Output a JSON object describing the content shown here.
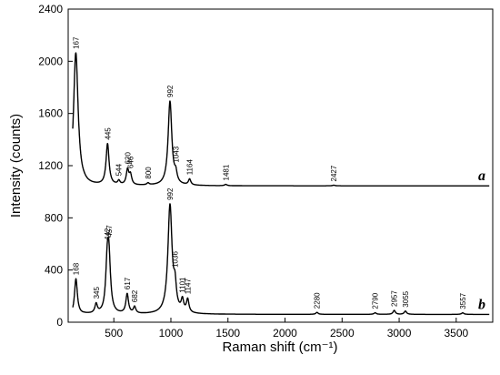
{
  "chart_data": {
    "type": "line",
    "xlabel": "Raman shift (cm⁻¹)",
    "ylabel": "Intensity (counts)",
    "xlim": [
      100,
      3820
    ],
    "ylim": [
      0,
      2400
    ],
    "xticks": [
      "500",
      "1000",
      "1500",
      "2000",
      "2500",
      "3000",
      "3500"
    ],
    "yticks": [
      "0",
      "400",
      "800",
      "1200",
      "1600",
      "2000",
      "2400"
    ],
    "grid": false,
    "legend": "none",
    "series": [
      {
        "name": "a",
        "baseline": 1045,
        "peaks": [
          {
            "x": 167,
            "y": 2090,
            "label": "167"
          },
          {
            "x": 445,
            "y": 1360,
            "label": "445"
          },
          {
            "x": 544,
            "y": 1075,
            "label": "544"
          },
          {
            "x": 620,
            "y": 1160,
            "label": "620"
          },
          {
            "x": 646,
            "y": 1120,
            "label": "646"
          },
          {
            "x": 800,
            "y": 1060,
            "label": "800"
          },
          {
            "x": 992,
            "y": 1690,
            "label": "992"
          },
          {
            "x": 1043,
            "y": 1110,
            "label": "1043"
          },
          {
            "x": 1164,
            "y": 1090,
            "label": "1164"
          },
          {
            "x": 1481,
            "y": 1055,
            "label": "1481"
          },
          {
            "x": 2427,
            "y": 1050,
            "label": "2427"
          }
        ]
      },
      {
        "name": "b",
        "baseline": 60,
        "peaks": [
          {
            "x": 168,
            "y": 340,
            "label": "168"
          },
          {
            "x": 345,
            "y": 130,
            "label": "345"
          },
          {
            "x": 442,
            "y": 380,
            "label": "442"
          },
          {
            "x": 457,
            "y": 450,
            "label": "457"
          },
          {
            "x": 617,
            "y": 210,
            "label": "617"
          },
          {
            "x": 682,
            "y": 110,
            "label": "682"
          },
          {
            "x": 992,
            "y": 890,
            "label": "992"
          },
          {
            "x": 1036,
            "y": 220,
            "label": "1036"
          },
          {
            "x": 1101,
            "y": 150,
            "label": "1101"
          },
          {
            "x": 1147,
            "y": 160,
            "label": "1147"
          },
          {
            "x": 2280,
            "y": 75,
            "label": "2280"
          },
          {
            "x": 2790,
            "y": 72,
            "label": "2790"
          },
          {
            "x": 2957,
            "y": 90,
            "label": "2957"
          },
          {
            "x": 3055,
            "y": 85,
            "label": "3055"
          },
          {
            "x": 3557,
            "y": 72,
            "label": "3557"
          }
        ]
      }
    ]
  }
}
